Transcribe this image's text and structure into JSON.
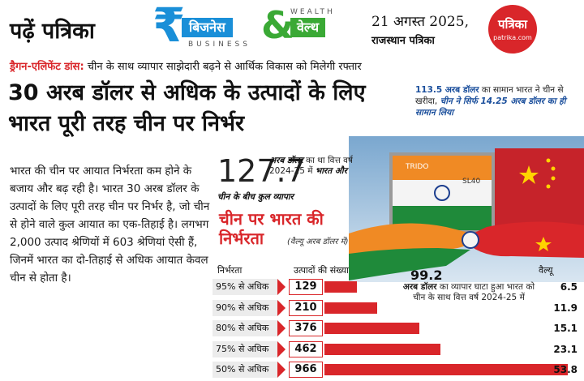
{
  "header": {
    "read_label": "पढ़ें पत्रिका",
    "logo": {
      "rupee_symbol": "₹",
      "business_hi": "बिजनेस",
      "ampersand": "&",
      "wealth_hi": "वेल्थ",
      "wealth_en": "WEALTH",
      "business_en": "BUSINESS"
    },
    "date": "21 अगस्त 2025,",
    "newspaper": "राजस्थान पत्रिका",
    "brand": {
      "name": "पत्रिका",
      "site": "patrika.com"
    }
  },
  "kicker": {
    "tag": "ड्रैगन-एलिफेंट डांस:",
    "text": " चीन के साथ व्यापार साझेदारी बढ़ने से आर्थिक विकास को मिलेगी रफ्तार"
  },
  "headline": "30 अरब डॉलर से अधिक के उत्पादों के लिए भारत पूरी तरह चीन पर निर्भर",
  "right_note": {
    "amount": "113.5 अरब डॉलर",
    "text": " का सामान भारत ने चीन से खरीदा, ",
    "emphasis": "चीन ने सिर्फ 14.25 अरब डॉलर का ही सामान लिया"
  },
  "body_text": "भारत की चीन पर आयात निर्भरता कम होने के बजाय और बढ़ रही है। भारत 30 अरब डॉलर के उत्पादों के लिए पूरी तरह चीन पर निर्भर है, जो चीन से होने वाले कुल आयात का एक-तिहाई है। लगभग 2,000 उत्पाद श्रेणियों में 603 श्रेणियां ऐसी हैं, जिनमें भारत का दो-तिहाई से अधिक आयात केवल चीन से होता है।",
  "trade": {
    "amount": "127.7",
    "text_bold": "अरब डॉलर",
    "text_1": " का था वित्त वर्ष 2024-25 में ",
    "text_bold_2": "भारत और",
    "subtitle": "चीन के बीच कुल व्यापार"
  },
  "deficit": {
    "amount": "99.2",
    "bold": "अरब डॉलर",
    "text": " का व्यापार घाटा हुआ भारत को चीन के साथ वित्त वर्ष 2024-25 में"
  },
  "artwork": {
    "icon": "handshake-containers-illustration",
    "container_text_1": "TRIDO",
    "container_text_2": "SL40"
  },
  "colors": {
    "accent_red": "#d9262a",
    "business_blue": "#1a8fd8",
    "wealth_green": "#3aa935",
    "note_blue": "#1b4f9c"
  },
  "chart_data": {
    "type": "bar",
    "title": "चीन पर भारत की निर्भरता",
    "subtitle": "(वैल्यू अरब डॉलर में)",
    "headers": [
      "निर्भरता",
      "उत्पादों की संख्या",
      "वैल्यू"
    ],
    "categories": [
      "95% से अधिक",
      "90% से अधिक",
      "80% से अधिक",
      "75% से अधिक",
      "50% से अधिक"
    ],
    "series": [
      {
        "name": "उत्पादों की संख्या",
        "values": [
          129,
          210,
          376,
          462,
          966
        ]
      },
      {
        "name": "वैल्यू",
        "values": [
          6.5,
          11.9,
          15.1,
          23.1,
          53.8
        ]
      }
    ]
  }
}
